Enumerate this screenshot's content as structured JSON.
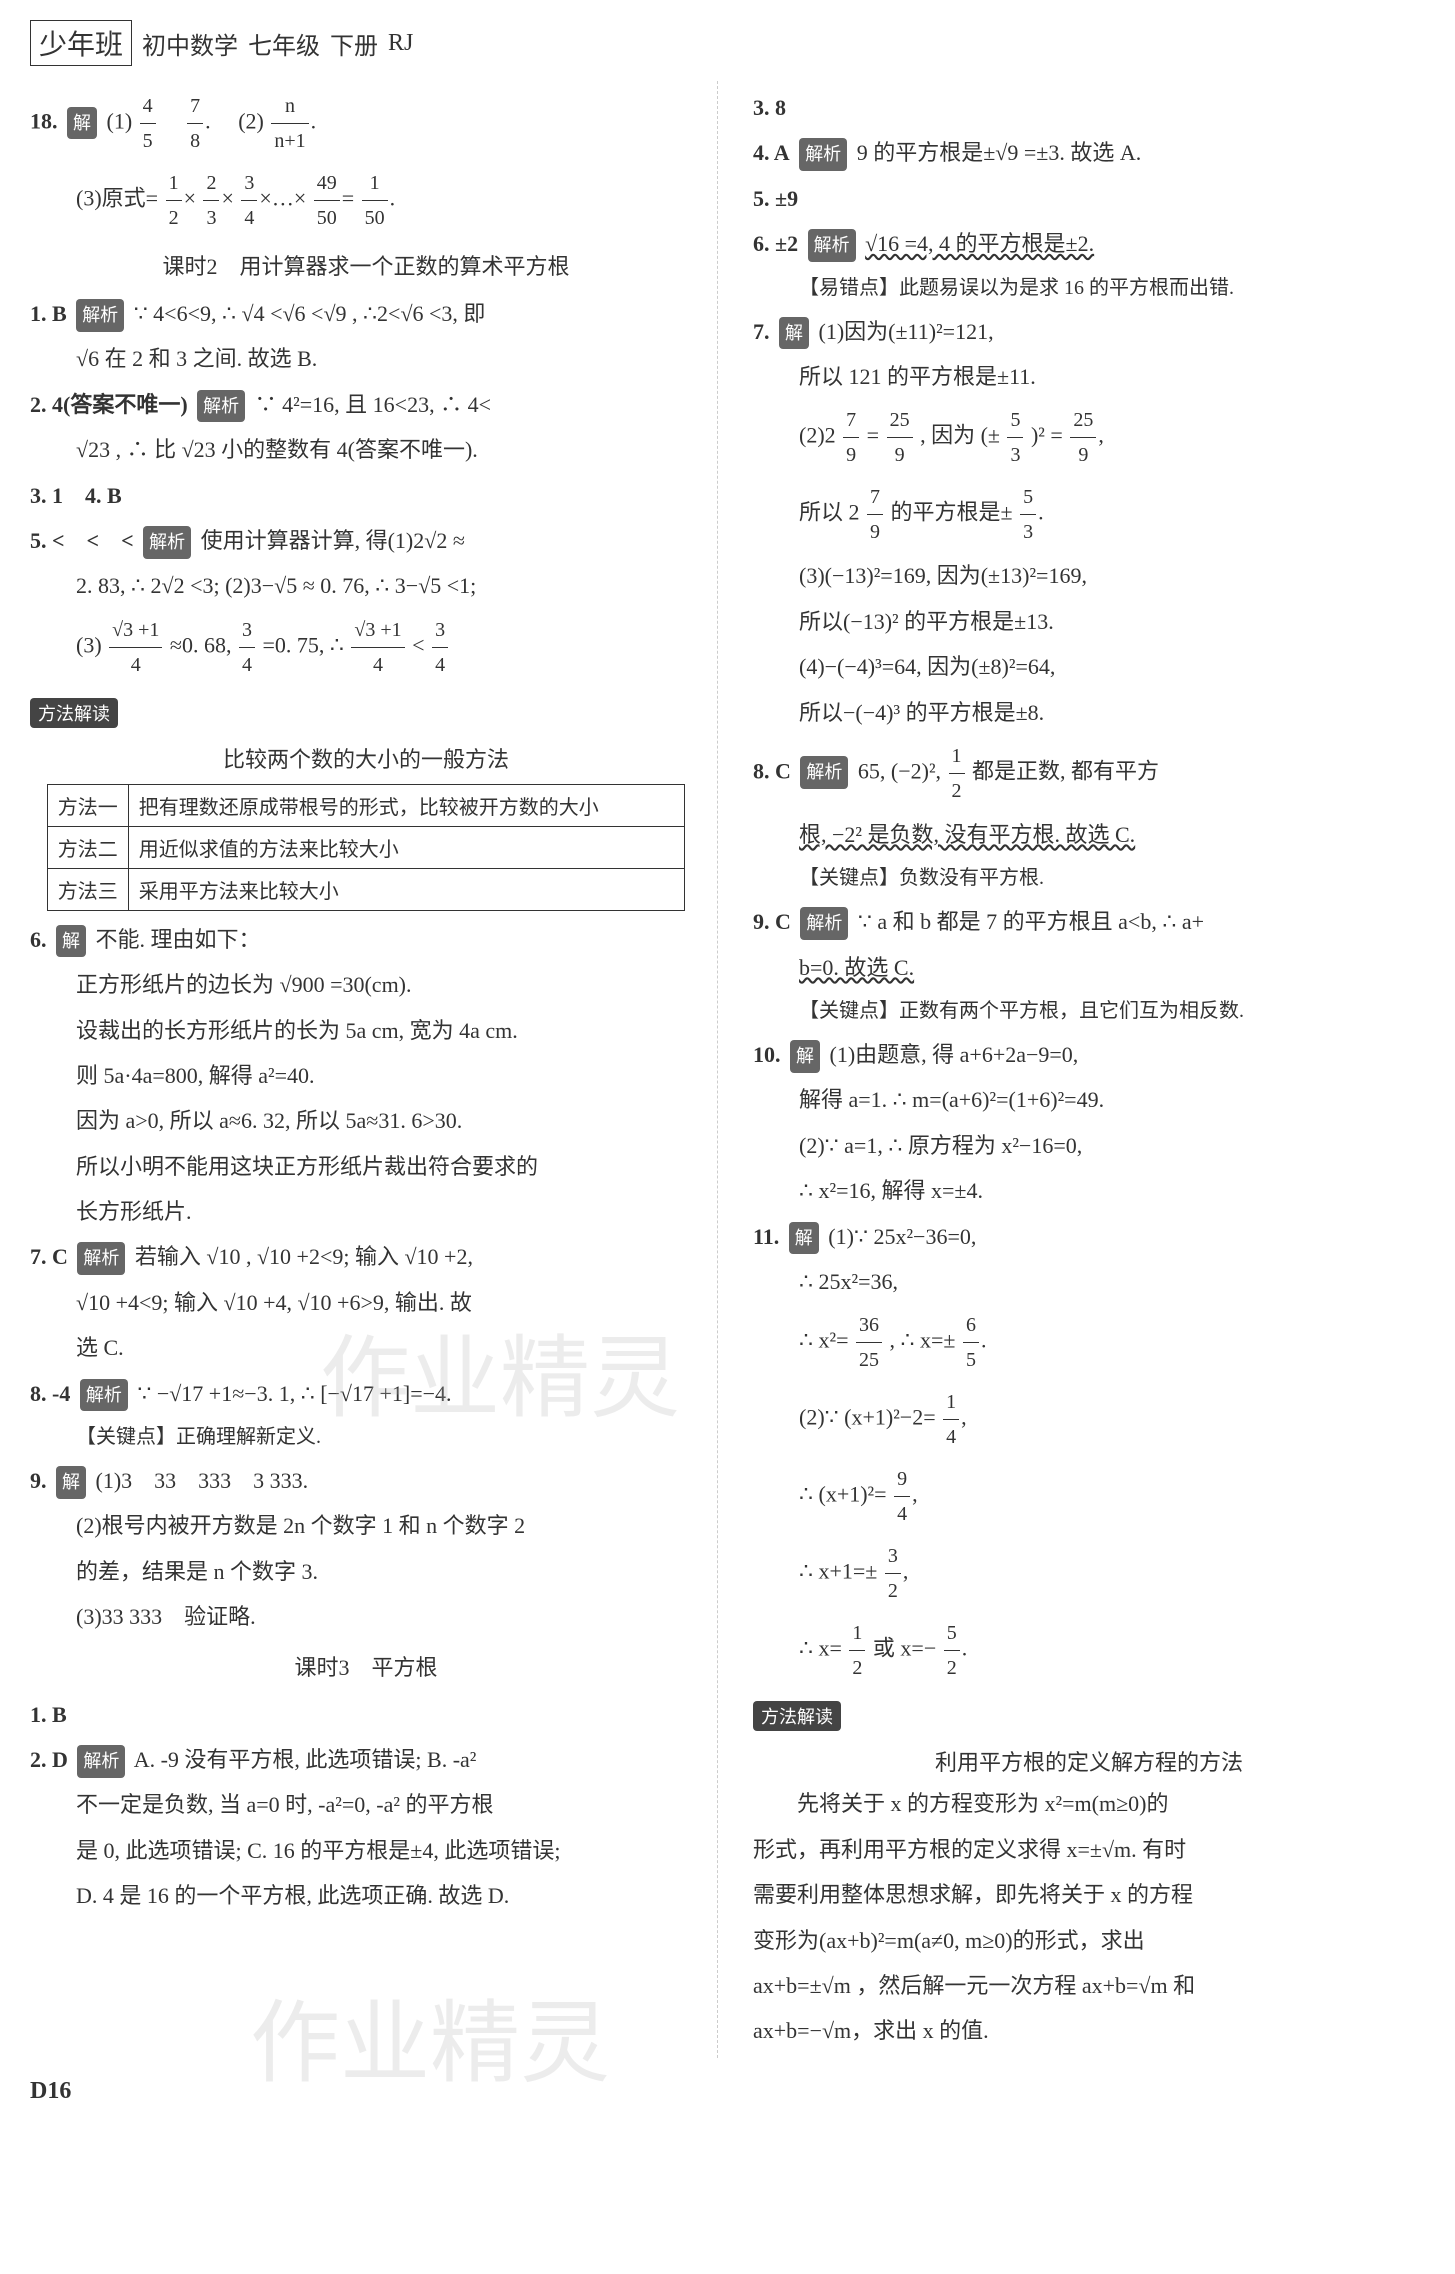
{
  "header": {
    "brand": "少年班",
    "subject": "初中数学",
    "grade": "七年级",
    "volume": "下册",
    "series": "RJ"
  },
  "left": {
    "q18": {
      "num": "18.",
      "tag": "解",
      "p1a": "(1)",
      "f1n": "4",
      "f1d": "5",
      "f2n": "7",
      "f2d": "8",
      "p2": "(2)",
      "f3n": "n",
      "f3d": "n+1",
      "p3pre": "(3)原式=",
      "fa1n": "1",
      "fa1d": "2",
      "fa2n": "2",
      "fa2d": "3",
      "fa3n": "3",
      "fa3d": "4",
      "fa4n": "49",
      "fa4d": "50",
      "fa5n": "1",
      "fa5d": "50"
    },
    "sec2_title": "课时2　用计算器求一个正数的算术平方根",
    "q1": {
      "num": "1. B",
      "tag": "解析",
      "text1": "∵ 4<6<9, ∴ √4 <√6 <√9 , ∴2<√6 <3, 即",
      "text2": "√6 在 2 和 3 之间. 故选 B."
    },
    "q2": {
      "num": "2. 4(答案不唯一)",
      "tag": "解析",
      "text1": "∵ 4²=16, 且 16<23, ∴ 4<",
      "text2": "√23 , ∴ 比 √23 小的整数有 4(答案不唯一)."
    },
    "q3": {
      "text": "3. 1　4. B"
    },
    "q5": {
      "num": "5. <　<　<",
      "tag": "解析",
      "text1": "使用计算器计算, 得(1)2√2 ≈",
      "text2": "2. 83, ∴ 2√2 <3; (2)3−√5 ≈ 0. 76, ∴ 3−√5 <1;",
      "p3pre": "(3)",
      "f1n": "√3 +1",
      "f1d": "4",
      "mid1": "≈0. 68,",
      "f2n": "3",
      "f2d": "4",
      "mid2": "=0. 75, ∴",
      "f3n": "√3 +1",
      "f3d": "4",
      "lt": "<",
      "f4n": "3",
      "f4d": "4"
    },
    "method_tag": "方法解读",
    "method_title": "比较两个数的大小的一般方法",
    "table": {
      "r1c1": "方法一",
      "r1c2": "把有理数还原成带根号的形式，比较被开方数的大小",
      "r2c1": "方法二",
      "r2c2": "用近似求值的方法来比较大小",
      "r3c1": "方法三",
      "r3c2": "采用平方法来比较大小"
    },
    "q6": {
      "num": "6.",
      "tag": "解",
      "t0": "不能. 理由如下：",
      "t1": "正方形纸片的边长为 √900 =30(cm).",
      "t2": "设裁出的长方形纸片的长为 5a cm, 宽为 4a cm.",
      "t3": "则 5a·4a=800, 解得 a²=40.",
      "t4": "因为 a>0, 所以 a≈6. 32, 所以 5a≈31. 6>30.",
      "t5": "所以小明不能用这块正方形纸片裁出符合要求的",
      "t6": "长方形纸片."
    },
    "q7": {
      "num": "7. C",
      "tag": "解析",
      "t1": "若输入 √10 , √10 +2<9; 输入 √10 +2,",
      "t2": "√10 +4<9; 输入 √10 +4, √10 +6>9, 输出. 故",
      "t3": "选 C."
    },
    "q8": {
      "num": "8. -4",
      "tag": "解析",
      "t1": "∵ −√17 +1≈−3. 1, ∴ [−√17 +1]=−4.",
      "note": "【关键点】正确理解新定义."
    },
    "q9": {
      "num": "9.",
      "tag": "解",
      "t1": "(1)3　33　333　3 333.",
      "t2": "(2)根号内被开方数是 2n 个数字 1 和 n 个数字 2",
      "t3": "的差，结果是 n 个数字 3.",
      "t4": "(3)33 333　验证略."
    },
    "sec3_title": "课时3　平方根",
    "lq1": {
      "text": "1. B"
    },
    "lq2": {
      "num": "2. D",
      "tag": "解析",
      "t1": "A. -9 没有平方根, 此选项错误; B. -a²",
      "t2": "不一定是负数, 当 a=0 时, -a²=0, -a² 的平方根",
      "t3": "是 0, 此选项错误; C. 16 的平方根是±4, 此选项错误;",
      "t4": "D. 4 是 16 的一个平方根, 此选项正确. 故选 D."
    }
  },
  "right": {
    "q3": {
      "text": "3. 8"
    },
    "q4": {
      "num": "4. A",
      "tag": "解析",
      "t1": "9 的平方根是±√9 =±3. 故选 A."
    },
    "q5": {
      "text": "5. ±9"
    },
    "q6": {
      "num": "6. ±2",
      "tag": "解析",
      "t1": "√16 =4, 4 的平方根是±2.",
      "note": "【易错点】此题易误以为是求 16 的平方根而出错."
    },
    "q7": {
      "num": "7.",
      "tag": "解",
      "t1": "(1)因为(±11)²=121,",
      "t2": "所以 121 的平方根是±11.",
      "p2pre": "(2)2",
      "f1n": "7",
      "f1d": "9",
      "eq1": "=",
      "f2n": "25",
      "f2d": "9",
      "mid1": ", 因为 (±",
      "f3n": "5",
      "f3d": "3",
      "mid2": ")² =",
      "f4n": "25",
      "f4d": "9",
      "t3pre": "所以 2",
      "f5n": "7",
      "f5d": "9",
      "t3mid": "的平方根是±",
      "f6n": "5",
      "f6d": "3",
      "t4": "(3)(−13)²=169, 因为(±13)²=169,",
      "t5": "所以(−13)² 的平方根是±13.",
      "t6": "(4)−(−4)³=64, 因为(±8)²=64,",
      "t7": "所以−(−4)³ 的平方根是±8."
    },
    "q8": {
      "num": "8. C",
      "tag": "解析",
      "t1pre": "65, (−2)², ",
      "f1n": "1",
      "f1d": "2",
      "t1post": "都是正数, 都有平方",
      "t2": "根, −2² 是负数, 没有平方根. 故选 C.",
      "note": "【关键点】负数没有平方根."
    },
    "q9": {
      "num": "9. C",
      "tag": "解析",
      "t1": "∵ a 和 b 都是 7 的平方根且 a<b, ∴ a+",
      "t2": "b=0. 故选 C.",
      "note": "【关键点】正数有两个平方根，且它们互为相反数."
    },
    "q10": {
      "num": "10.",
      "tag": "解",
      "t1": "(1)由题意, 得 a+6+2a−9=0,",
      "t2": "解得 a=1. ∴ m=(a+6)²=(1+6)²=49.",
      "t3": "(2)∵ a=1, ∴ 原方程为 x²−16=0,",
      "t4": "∴ x²=16, 解得 x=±4."
    },
    "q11": {
      "num": "11.",
      "tag": "解",
      "t1": "(1)∵ 25x²−36=0,",
      "t2": "∴ 25x²=36,",
      "t3pre": "∴ x²=",
      "f1n": "36",
      "f1d": "25",
      "t3mid": ", ∴ x=±",
      "f2n": "6",
      "f2d": "5",
      "t4pre": "(2)∵ (x+1)²−2=",
      "f3n": "1",
      "f3d": "4",
      "t5pre": "∴ (x+1)²=",
      "f4n": "9",
      "f4d": "4",
      "t6pre": "∴ x+1=±",
      "f5n": "3",
      "f5d": "2",
      "t7pre": "∴ x=",
      "f6n": "1",
      "f6d": "2",
      "t7mid": "或 x=−",
      "f7n": "5",
      "f7d": "2"
    },
    "method_tag": "方法解读",
    "method_title": "利用平方根的定义解方程的方法",
    "method_body1": "先将关于 x 的方程变形为 x²=m(m≥0)的",
    "method_body2": "形式，再利用平方根的定义求得 x=±√m. 有时",
    "method_body3": "需要利用整体思想求解，即先将关于 x 的方程",
    "method_body4": "变形为(ax+b)²=m(a≠0, m≥0)的形式，求出",
    "method_body5": "ax+b=±√m ，然后解一元一次方程 ax+b=√m 和",
    "method_body6": "ax+b=−√m，求出 x 的值."
  },
  "footer": "D16",
  "watermark": "作业精灵"
}
